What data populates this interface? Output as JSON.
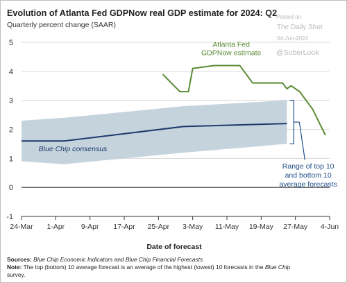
{
  "header": {
    "title": "Evolution of Atlanta Fed GDPNow real GDP estimate for 2024: Q2",
    "subtitle": "Quarterly percent change (SAAR)"
  },
  "watermark": {
    "line1": "Posted on",
    "line2": "The Daily Shot",
    "line3": "04-Jun-2024",
    "handle": "@SoberLook"
  },
  "footer": {
    "sources_label": "Sources:",
    "sources_text_1": "Blue Chip Economic Indicators",
    "sources_and": " and ",
    "sources_text_2": "Blue Chip Financial Forecasts",
    "note_label": "Note:",
    "note_text": " The top (bottom) 10 average forecast is an average of the highest (lowest) 10 forecasts in the ",
    "note_italic": "Blue Chip",
    "note_end": "survey."
  },
  "chart_data": {
    "type": "line",
    "title": "Evolution of Atlanta Fed GDPNow real GDP estimate for 2024: Q2",
    "subtitle": "Quarterly percent change (SAAR)",
    "xlabel": "Date of forecast",
    "ylabel": "",
    "xlim": [
      "2024-03-24",
      "2024-06-04"
    ],
    "ylim": [
      -1,
      5
    ],
    "x_ticks": [
      "24-Mar",
      "1-Apr",
      "9-Apr",
      "17-Apr",
      "25-Apr",
      "3-May",
      "11-May",
      "19-May",
      "27-May",
      "4-Jun"
    ],
    "x_tick_dates": [
      "2024-03-24",
      "2024-04-01",
      "2024-04-09",
      "2024-04-17",
      "2024-04-25",
      "2024-05-03",
      "2024-05-11",
      "2024-05-19",
      "2024-05-27",
      "2024-06-04"
    ],
    "y_ticks": [
      -1,
      0,
      1,
      2,
      3,
      4,
      5
    ],
    "y_tick_labels": [
      "-1",
      "0",
      "1",
      "2",
      "3",
      "4",
      "5"
    ],
    "grid": "horizontal",
    "colors": {
      "gdpnow": "#5a8a32",
      "bluechip": "#1b3a6b",
      "band": "#c5d3dd",
      "annotation": "#1f4e8a",
      "grid": "#d9d9d9",
      "axis": "#333333"
    },
    "series": [
      {
        "name": "Atlanta Fed GDPNow estimate",
        "label_lines": [
          "Atlanta Fed",
          "GDPNow estimate"
        ],
        "x": [
          "2024-04-26",
          "2024-04-30",
          "2024-05-02",
          "2024-05-03",
          "2024-05-08",
          "2024-05-14",
          "2024-05-16",
          "2024-05-17",
          "2024-05-24",
          "2024-05-25",
          "2024-05-26",
          "2024-05-28",
          "2024-05-31",
          "2024-06-03"
        ],
        "values": [
          3.9,
          3.3,
          3.3,
          4.1,
          4.2,
          4.2,
          3.8,
          3.6,
          3.6,
          3.4,
          3.5,
          3.3,
          2.7,
          1.8
        ]
      },
      {
        "name": "Blue Chip consensus",
        "x": [
          "2024-03-24",
          "2024-04-03",
          "2024-05-01",
          "2024-05-25"
        ],
        "values": [
          1.6,
          1.6,
          2.1,
          2.2
        ]
      }
    ],
    "band": {
      "name": "Range of top 10 and bottom 10 average forecasts",
      "label_lines": [
        "Range of top 10",
        "and bottom 10",
        "average forecasts"
      ],
      "x": [
        "2024-03-24",
        "2024-04-03",
        "2024-05-01",
        "2024-05-25"
      ],
      "upper": [
        2.3,
        2.4,
        2.8,
        3.0
      ],
      "lower": [
        0.9,
        0.8,
        1.2,
        1.5
      ]
    }
  }
}
